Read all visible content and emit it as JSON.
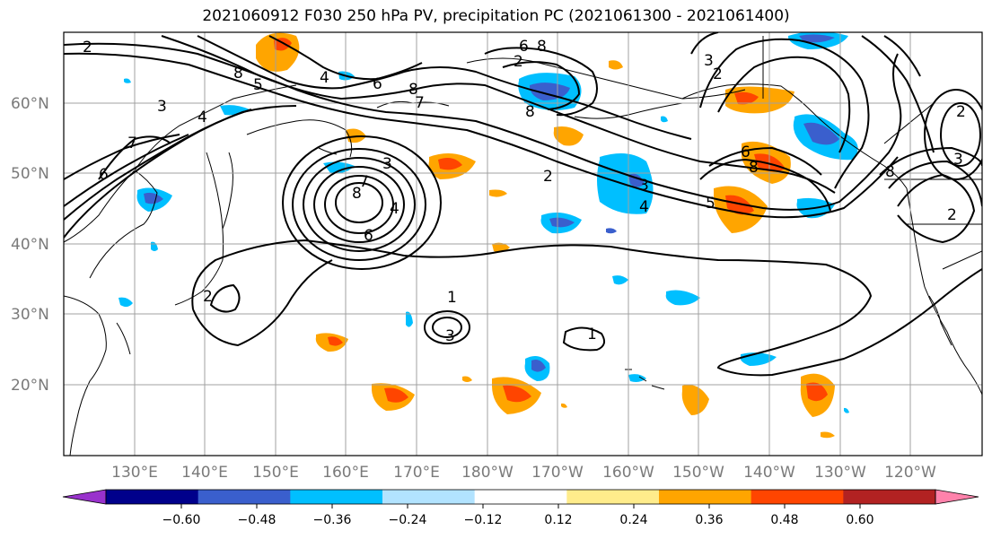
{
  "title": "2021060912 F030 250 hPa PV, precipitation PC (2021061300 - 2021061400)",
  "lat_labels": [
    "60°N",
    "50°N",
    "40°N",
    "30°N",
    "20°N"
  ],
  "lon_labels": [
    "130°E",
    "140°E",
    "150°E",
    "160°E",
    "170°E",
    "180°W",
    "170°W",
    "160°W",
    "150°W",
    "140°W",
    "130°W",
    "120°W"
  ],
  "colorbar": {
    "colors": [
      "#9932cc",
      "#00008b",
      "#3a5fcd",
      "#00bfff",
      "#b2e3ff",
      "#ffffff",
      "#ffec8b",
      "#ffa500",
      "#ff4500",
      "#b22222",
      "#ff82ab"
    ],
    "tick_labels": [
      "−0.60",
      "−0.48",
      "−0.36",
      "−0.24",
      "−0.12",
      "0.12",
      "0.24",
      "0.36",
      "0.48",
      "0.60"
    ]
  },
  "contour_labels": [
    "2",
    "3",
    "4",
    "6",
    "8",
    "7",
    "5",
    "8",
    "7",
    "6",
    "4",
    "3",
    "2",
    "2",
    "1",
    "3",
    "1",
    "8",
    "4",
    "7",
    "6",
    "2",
    "8",
    "6",
    "8",
    "3",
    "2",
    "8",
    "3",
    "5",
    "4",
    "6",
    "8",
    "2",
    "3",
    "2"
  ]
}
